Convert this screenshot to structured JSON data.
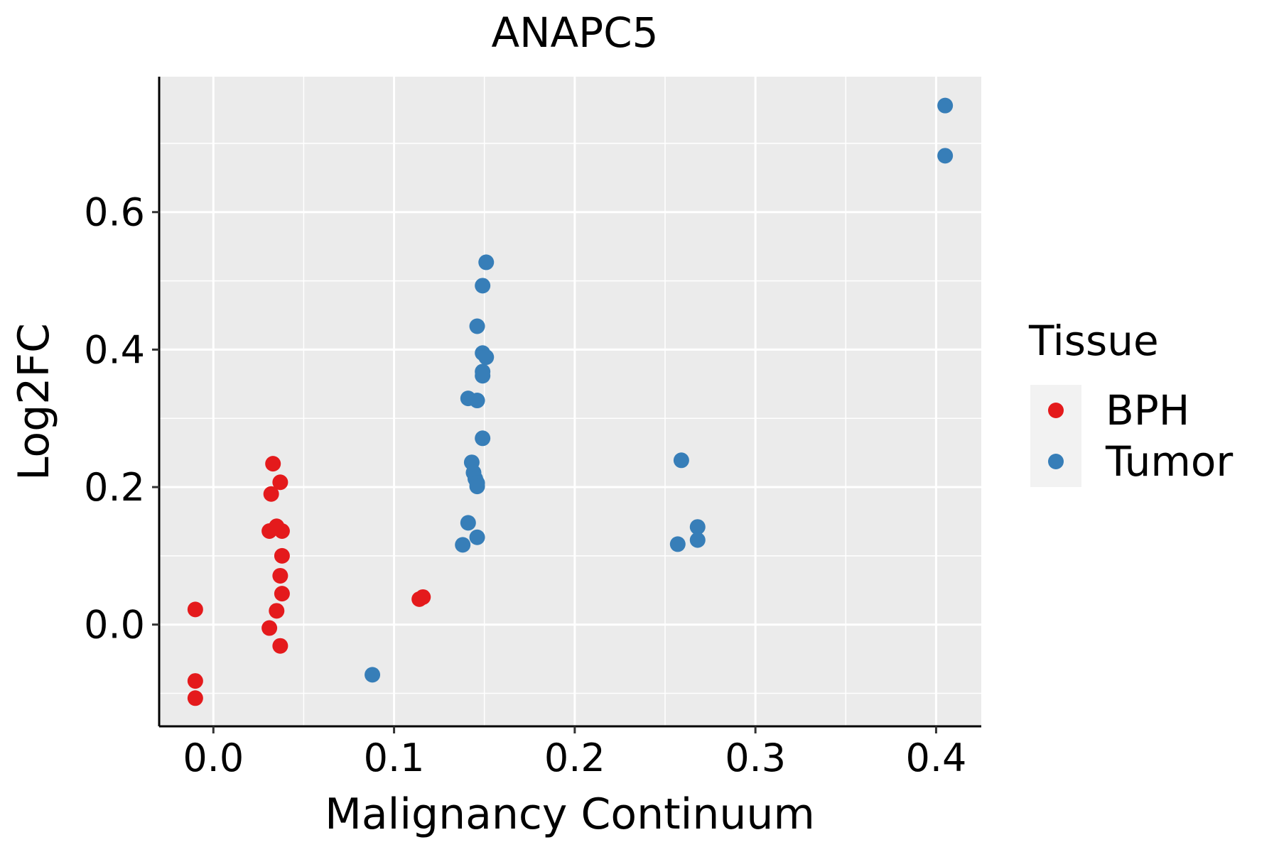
{
  "chart_data": {
    "type": "scatter",
    "title": "ANAPC5",
    "xlabel": "Malignancy Continuum",
    "ylabel": "Log2FC",
    "xlim": [
      -0.03,
      0.425
    ],
    "ylim": [
      -0.148,
      0.797
    ],
    "x_ticks": [
      0.0,
      0.1,
      0.2,
      0.3,
      0.4
    ],
    "x_tick_labels": [
      "0.0",
      "0.1",
      "0.2",
      "0.3",
      "0.4"
    ],
    "y_ticks": [
      0.0,
      0.2,
      0.4,
      0.6
    ],
    "y_tick_labels": [
      "0.0",
      "0.2",
      "0.4",
      "0.6"
    ],
    "grid": true,
    "legend": {
      "title": "Tissue",
      "position": "right",
      "entries": [
        {
          "label": "BPH",
          "color": "#E41A1C"
        },
        {
          "label": "Tumor",
          "color": "#377EB8"
        }
      ]
    },
    "series": [
      {
        "name": "BPH",
        "color": "#E41A1C",
        "points": [
          {
            "x": -0.01,
            "y": 0.022
          },
          {
            "x": -0.01,
            "y": -0.082
          },
          {
            "x": -0.01,
            "y": -0.107
          },
          {
            "x": 0.033,
            "y": 0.234
          },
          {
            "x": 0.037,
            "y": 0.207
          },
          {
            "x": 0.032,
            "y": 0.19
          },
          {
            "x": 0.035,
            "y": 0.143
          },
          {
            "x": 0.031,
            "y": 0.136
          },
          {
            "x": 0.038,
            "y": 0.136
          },
          {
            "x": 0.038,
            "y": 0.1
          },
          {
            "x": 0.037,
            "y": 0.071
          },
          {
            "x": 0.038,
            "y": 0.045
          },
          {
            "x": 0.035,
            "y": 0.02
          },
          {
            "x": 0.031,
            "y": -0.005
          },
          {
            "x": 0.037,
            "y": -0.031
          },
          {
            "x": 0.114,
            "y": 0.037
          },
          {
            "x": 0.116,
            "y": 0.04
          }
        ]
      },
      {
        "name": "Tumor",
        "color": "#377EB8",
        "points": [
          {
            "x": 0.405,
            "y": 0.755
          },
          {
            "x": 0.405,
            "y": 0.682
          },
          {
            "x": 0.151,
            "y": 0.527
          },
          {
            "x": 0.149,
            "y": 0.493
          },
          {
            "x": 0.146,
            "y": 0.434
          },
          {
            "x": 0.149,
            "y": 0.395
          },
          {
            "x": 0.151,
            "y": 0.389
          },
          {
            "x": 0.149,
            "y": 0.368
          },
          {
            "x": 0.149,
            "y": 0.362
          },
          {
            "x": 0.141,
            "y": 0.329
          },
          {
            "x": 0.146,
            "y": 0.326
          },
          {
            "x": 0.149,
            "y": 0.271
          },
          {
            "x": 0.143,
            "y": 0.236
          },
          {
            "x": 0.144,
            "y": 0.221
          },
          {
            "x": 0.145,
            "y": 0.212
          },
          {
            "x": 0.146,
            "y": 0.206
          },
          {
            "x": 0.146,
            "y": 0.201
          },
          {
            "x": 0.141,
            "y": 0.148
          },
          {
            "x": 0.146,
            "y": 0.127
          },
          {
            "x": 0.138,
            "y": 0.116
          },
          {
            "x": 0.088,
            "y": -0.073
          },
          {
            "x": 0.259,
            "y": 0.239
          },
          {
            "x": 0.268,
            "y": 0.142
          },
          {
            "x": 0.268,
            "y": 0.123
          },
          {
            "x": 0.257,
            "y": 0.117
          }
        ]
      }
    ]
  }
}
